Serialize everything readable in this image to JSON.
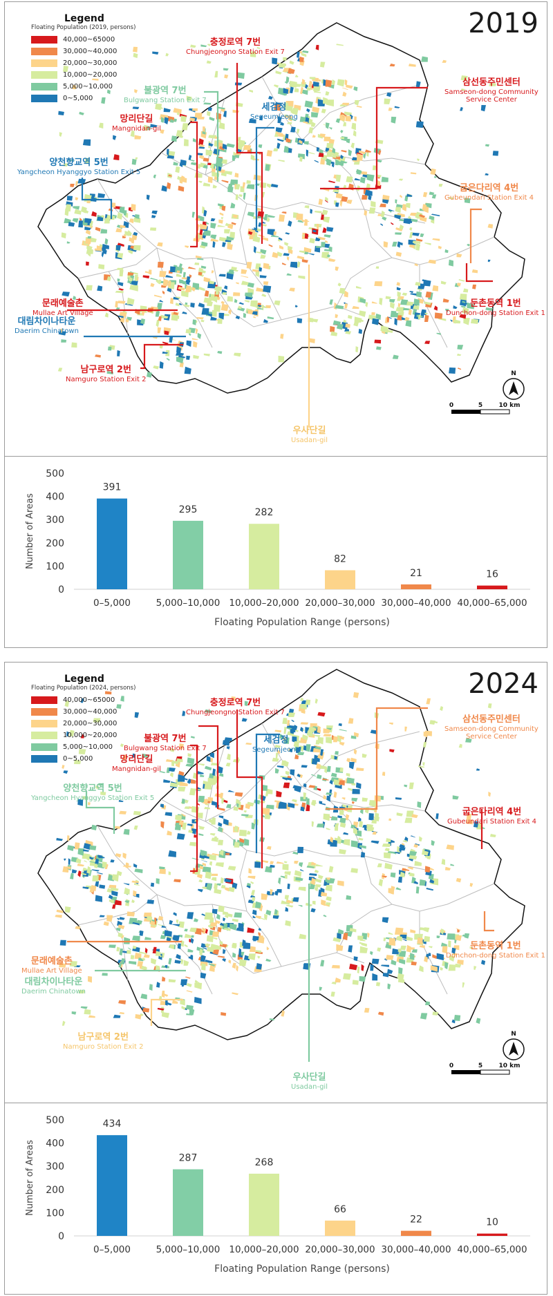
{
  "colors": {
    "c40_65": "#d7191c",
    "c30_40": "#f0884a",
    "c20_30": "#fdd48a",
    "c10_20": "#d6ec9f",
    "c5_10": "#7fcaa0",
    "c0_5": "#1f78b4",
    "district_lines": "#bdbdbd",
    "boundary": "#111111"
  },
  "legend": {
    "title": "Legend",
    "ranges": [
      "40,000~65000",
      "30,000~40,000",
      "20,000~30,000",
      "10,000~20,000",
      "5,000~10,000",
      "0~5,000"
    ]
  },
  "scale_bar": {
    "ticks": [
      "0",
      "5",
      "10 km"
    ]
  },
  "north_arrow": {
    "label": "N",
    "icon": "north-arrow-icon"
  },
  "panels": [
    {
      "year": "2019",
      "legend_subtitle": "Floating Population (2019, persons)",
      "callouts": {
        "chungjeongno": {
          "ko": "충정로역 7번",
          "en": "Chungjeongno Station Exit 7",
          "color": "#d7191c"
        },
        "bulgwang": {
          "ko": "불광역 7번",
          "en": "Bulgwang Station Exit 7",
          "color": "#7fcaa0"
        },
        "mangnidan": {
          "ko": "망리단길",
          "en": "Mangnidan-gil",
          "color": "#d7191c"
        },
        "segeumjeong": {
          "ko": "세검정",
          "en": "Segeumjeong",
          "color": "#1f78b4"
        },
        "samseon": {
          "ko": "삼선동주민센터",
          "en": "Samseon-dong Community",
          "en2": "Service Center",
          "color": "#d7191c"
        },
        "yangcheon": {
          "ko": "양천향교역 5번",
          "en": "Yangcheon Hyanggyo Station Exit 5",
          "color": "#1f78b4"
        },
        "gubeundari": {
          "ko": "굽은다리역 4번",
          "en": "Gubeundari Station Exit 4",
          "color": "#f0884a"
        },
        "mullae": {
          "ko": "문래예술촌",
          "en": "Mullae Art Village",
          "color": "#d7191c"
        },
        "dunchon": {
          "ko": "둔촌동역 1번",
          "en": "Dunchon-dong Station Exit 1",
          "color": "#d7191c"
        },
        "daerim": {
          "ko": "대림차이나타운",
          "en": "Daerim Chinatown",
          "color": "#1f78b4"
        },
        "namguro": {
          "ko": "남구로역 2번",
          "en": "Namguro Station Exit 2",
          "color": "#d7191c"
        },
        "usadan": {
          "ko": "우사단길",
          "en": "Usadan-gil",
          "color": "#fdd48a"
        }
      }
    },
    {
      "year": "2024",
      "legend_subtitle": "Floating Population (2024, persons)",
      "callouts": {
        "chungjeongno": {
          "ko": "충정로역 7번",
          "en": "Chungjeongno Station Exit 7",
          "color": "#d7191c"
        },
        "bulgwang": {
          "ko": "불광역 7번",
          "en": "Bulgwang Station Exit 7",
          "color": "#d7191c"
        },
        "mangnidan": {
          "ko": "망리단길",
          "en": "Mangnidan-gil",
          "color": "#d7191c"
        },
        "segeumjeong": {
          "ko": "세검정",
          "en": "Segeumjeong",
          "color": "#1f78b4"
        },
        "samseon": {
          "ko": "삼선동주민센터",
          "en": "Samseon-dong Community",
          "en2": "Service Center",
          "color": "#f0884a"
        },
        "yangcheon": {
          "ko": "양천향교역 5번",
          "en": "Yangcheon Hyanggyo Station Exit 5",
          "color": "#7fcaa0"
        },
        "gubeundari": {
          "ko": "굽은다리역 4번",
          "en": "Gubeundari Station Exit 4",
          "color": "#d7191c"
        },
        "mullae": {
          "ko": "문래예술촌",
          "en": "Mullae Art Village",
          "color": "#f0884a"
        },
        "dunchon": {
          "ko": "둔촌동역 1번",
          "en": "Dunchon-dong Station Exit 1",
          "color": "#f0884a"
        },
        "daerim": {
          "ko": "대림차이나타운",
          "en": "Daerim Chinatown",
          "color": "#7fcaa0"
        },
        "namguro": {
          "ko": "남구로역 2번",
          "en": "Namguro Station Exit 2",
          "color": "#fdd48a"
        },
        "usadan": {
          "ko": "우사단길",
          "en": "Usadan-gil",
          "color": "#7fcaa0"
        }
      }
    }
  ],
  "chart_data": [
    {
      "type": "bar",
      "categories": [
        "0–5,000",
        "5,000–10,000",
        "10,000–20,000",
        "20,000–30,000",
        "30,000–40,000",
        "40,000–65,000"
      ],
      "values": [
        391,
        295,
        282,
        82,
        21,
        16
      ],
      "bar_colors": [
        "#1f84c6",
        "#82cea6",
        "#d6ec9f",
        "#fdd48a",
        "#f0884a",
        "#d7191c"
      ],
      "xlabel": "Floating Population Range (persons)",
      "ylabel": "Number of Areas",
      "ylim": [
        0,
        500
      ],
      "yticks": [
        0,
        100,
        200,
        300,
        400,
        500
      ],
      "grid": false,
      "data_labels": true
    },
    {
      "type": "bar",
      "categories": [
        "0–5,000",
        "5,000–10,000",
        "10,000–20,000",
        "20,000–30,000",
        "30,000–40,000",
        "40,000–65,000"
      ],
      "values": [
        434,
        287,
        268,
        66,
        22,
        10
      ],
      "bar_colors": [
        "#1f84c6",
        "#82cea6",
        "#d6ec9f",
        "#fdd48a",
        "#f0884a",
        "#d7191c"
      ],
      "xlabel": "Floating Population Range (persons)",
      "ylabel": "Number of Areas",
      "ylim": [
        0,
        500
      ],
      "yticks": [
        0,
        100,
        200,
        300,
        400,
        500
      ],
      "grid": false,
      "data_labels": true
    }
  ]
}
